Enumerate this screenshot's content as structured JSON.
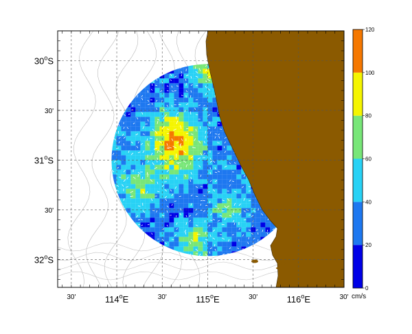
{
  "map": {
    "lat_labels": [
      {
        "text": "30°S",
        "deg": "30",
        "hemi": "S",
        "y": 30.0
      },
      {
        "text": "30'",
        "y": 30.5
      },
      {
        "text": "31°S",
        "deg": "31",
        "hemi": "S",
        "y": 31.0
      },
      {
        "text": "30'",
        "y": 31.5
      },
      {
        "text": "32°S",
        "deg": "32",
        "hemi": "S",
        "y": 32.0
      }
    ],
    "lon_labels": [
      {
        "text": "30'",
        "x": 113.5
      },
      {
        "text": "114°E",
        "deg": "114",
        "hemi": "E",
        "x": 114.0
      },
      {
        "text": "30'",
        "x": 114.5
      },
      {
        "text": "115°E",
        "deg": "115",
        "hemi": "E",
        "x": 115.0
      },
      {
        "text": "30'",
        "x": 115.5
      },
      {
        "text": "116°E",
        "deg": "116",
        "hemi": "E",
        "x": 116.0
      },
      {
        "text": "30'",
        "x": 116.5
      }
    ],
    "extent": {
      "lon": [
        113.35,
        116.5
      ],
      "lat": [
        29.7,
        32.28
      ]
    },
    "grid": true,
    "land_color": "#8B5A00",
    "coverage_center": {
      "lon": 115.0,
      "lat": 31.0
    }
  },
  "colorbar": {
    "ticks": [
      "120",
      "100",
      "80",
      "60",
      "40",
      "20",
      "0"
    ],
    "unit": "cm/s",
    "range": [
      0,
      120
    ],
    "bins": [
      {
        "from": 0,
        "to": 20,
        "color": "#0000E6"
      },
      {
        "from": 20,
        "to": 40,
        "color": "#1E78F0"
      },
      {
        "from": 40,
        "to": 60,
        "color": "#28D2F5"
      },
      {
        "from": 60,
        "to": 80,
        "color": "#78E678"
      },
      {
        "from": 80,
        "to": 100,
        "color": "#F5F500"
      },
      {
        "from": 100,
        "to": 120,
        "color": "#F57800"
      }
    ]
  }
}
